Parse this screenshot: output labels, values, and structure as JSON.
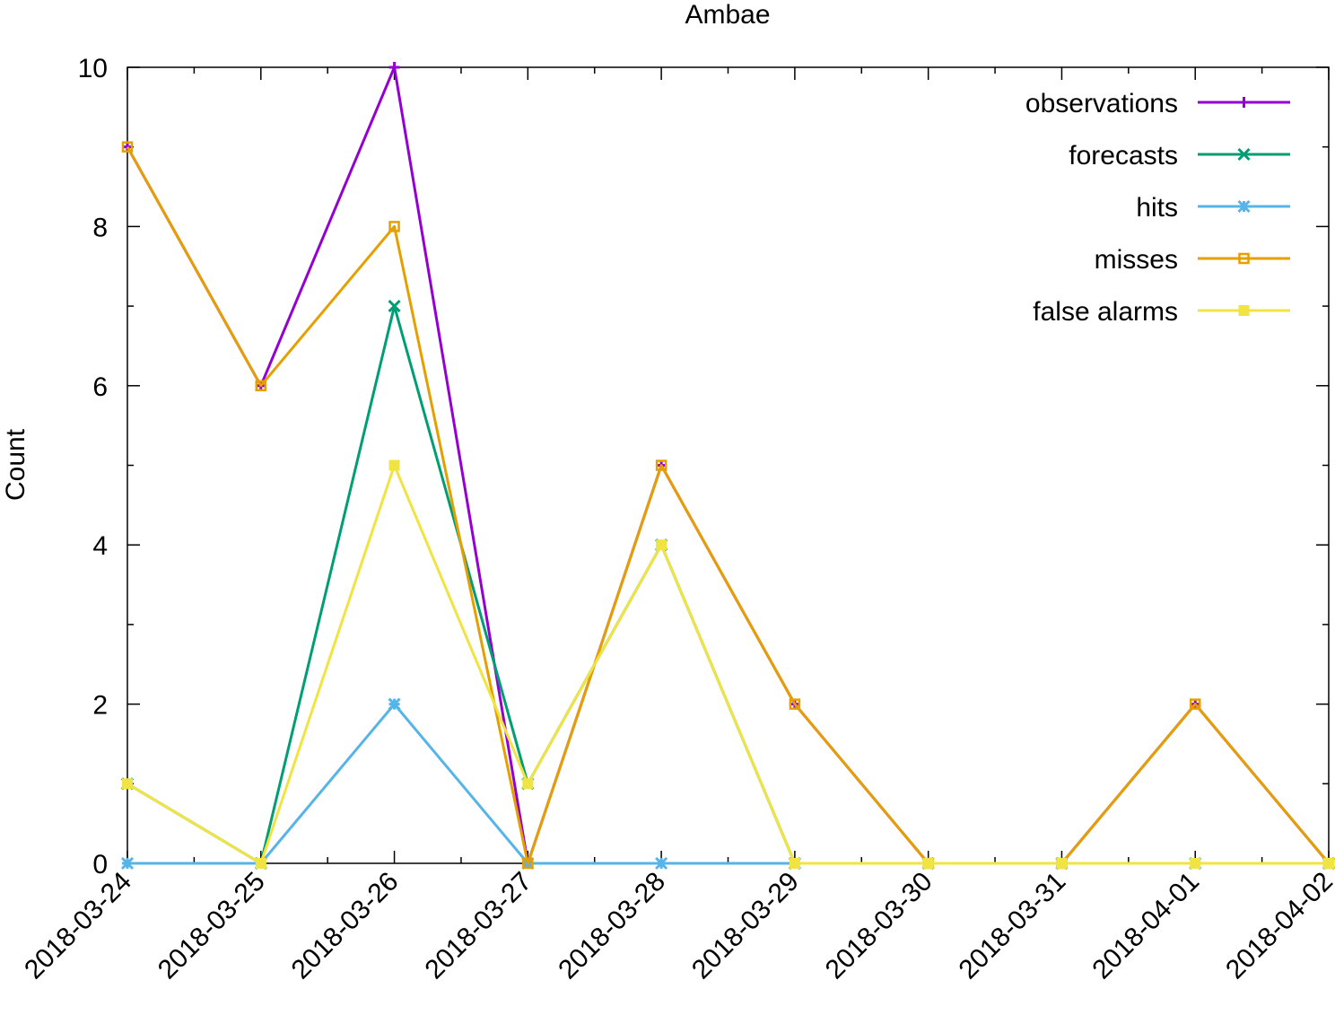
{
  "chart_data": {
    "type": "line",
    "title": "Ambae",
    "xlabel": "",
    "ylabel": "Count",
    "ylim": [
      0,
      10
    ],
    "y_ticks": [
      0,
      2,
      4,
      6,
      8,
      10
    ],
    "y_tick_labels": [
      "0",
      "2",
      "4",
      "6",
      "8",
      "10"
    ],
    "y_minor_step": 1,
    "categories": [
      "2018-03-24",
      "2018-03-25",
      "2018-03-26",
      "2018-03-27",
      "2018-03-28",
      "2018-03-29",
      "2018-03-30",
      "2018-03-31",
      "2018-04-01",
      "2018-04-02"
    ],
    "grid": false,
    "legend_position": "top-right",
    "series": [
      {
        "name": "observations",
        "color": "#9400d3",
        "marker": "plus",
        "values": [
          9,
          6,
          10,
          0,
          5,
          2,
          0,
          0,
          2,
          0
        ]
      },
      {
        "name": "forecasts",
        "color": "#009e73",
        "marker": "cross",
        "values": [
          1,
          0,
          7,
          1,
          4,
          0,
          0,
          0,
          0,
          0
        ]
      },
      {
        "name": "hits",
        "color": "#56b4e9",
        "marker": "star",
        "values": [
          0,
          0,
          2,
          0,
          0,
          0,
          0,
          0,
          0,
          0
        ]
      },
      {
        "name": "misses",
        "color": "#e69f00",
        "marker": "open-square",
        "values": [
          9,
          6,
          8,
          0,
          5,
          2,
          0,
          0,
          2,
          0
        ]
      },
      {
        "name": "false alarms",
        "color": "#f0e442",
        "marker": "filled-square",
        "values": [
          1,
          0,
          5,
          1,
          4,
          0,
          0,
          0,
          0,
          0
        ]
      }
    ]
  }
}
